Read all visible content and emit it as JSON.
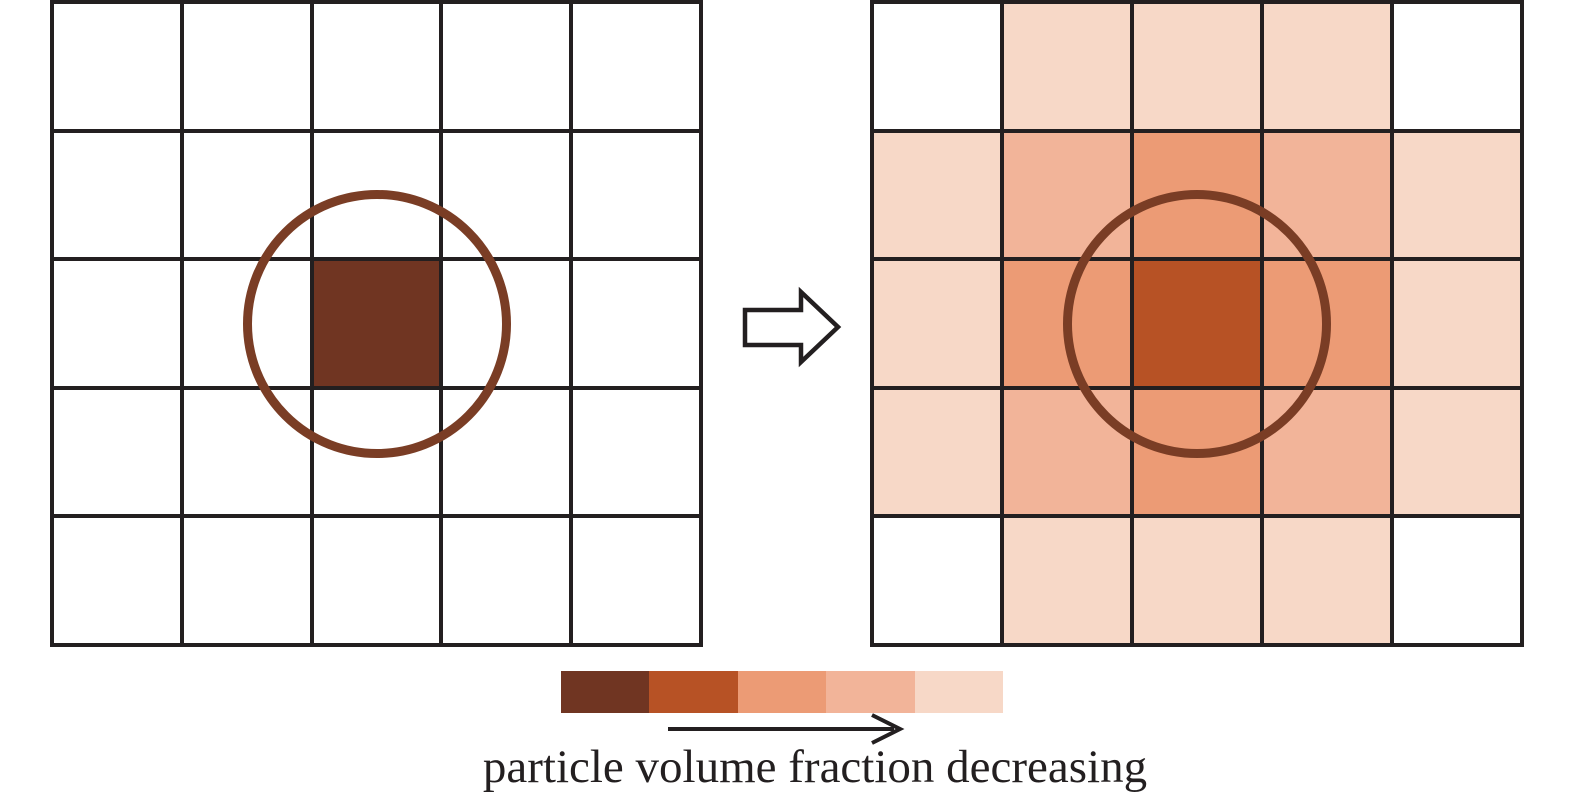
{
  "figure": {
    "caption": "particle volume fraction decreasing",
    "colors": {
      "grid_line": "#231f20",
      "circle_stroke": "#7a3d25",
      "text": "#231f20",
      "background": "#ffffff"
    },
    "level_colors": [
      "#ffffff",
      "#f7d8c7",
      "#f2b499",
      "#ec9b75",
      "#b75225",
      "#703522"
    ],
    "left_grid": {
      "rows": 5,
      "cols": 5,
      "description": "single particle cell, full volume fraction",
      "cells": [
        [
          0,
          0,
          0,
          0,
          0
        ],
        [
          0,
          0,
          0,
          0,
          0
        ],
        [
          0,
          0,
          5,
          0,
          0
        ],
        [
          0,
          0,
          0,
          0,
          0
        ],
        [
          0,
          0,
          0,
          0,
          0
        ]
      ]
    },
    "right_grid": {
      "rows": 5,
      "cols": 5,
      "description": "diffused particle volume fraction kernel",
      "cells": [
        [
          0,
          1,
          1,
          1,
          0
        ],
        [
          1,
          2,
          3,
          2,
          1
        ],
        [
          1,
          3,
          4,
          3,
          1
        ],
        [
          1,
          2,
          3,
          2,
          1
        ],
        [
          0,
          1,
          1,
          1,
          0
        ]
      ]
    },
    "legend": {
      "swatches": [
        "#703522",
        "#b75225",
        "#ec9b75",
        "#f2b499",
        "#f7d8c7"
      ],
      "arrow_direction": "right"
    }
  }
}
